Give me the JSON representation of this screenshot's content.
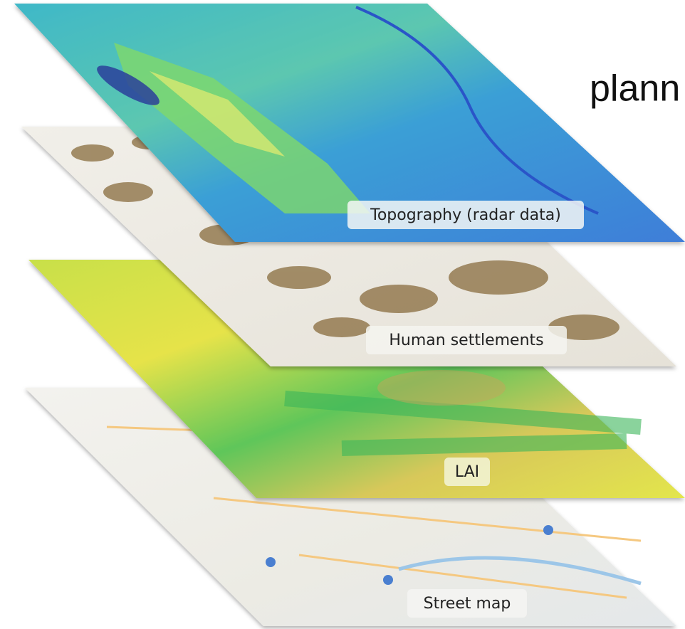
{
  "heading": "plann",
  "layers": [
    {
      "label": "Topography (radar data)"
    },
    {
      "label": "Human settlements"
    },
    {
      "label": "LAI"
    },
    {
      "label": "Street map"
    }
  ]
}
